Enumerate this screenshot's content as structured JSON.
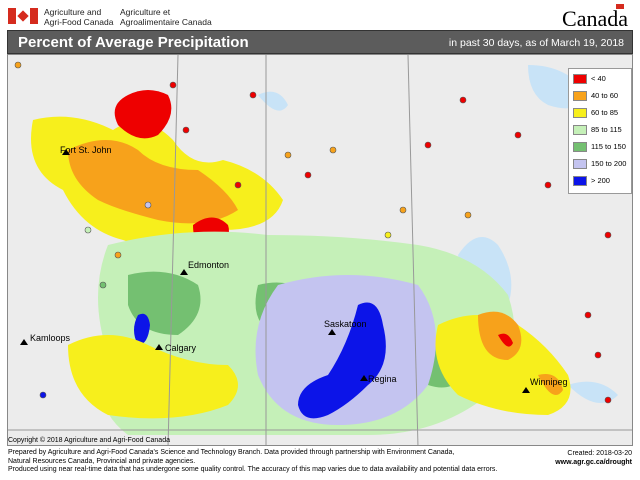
{
  "header": {
    "dept_en": "Agriculture and\nAgri-Food Canada",
    "dept_fr": "Agriculture et\nAgroalimentaire Canada",
    "wordmark": "Canada",
    "flag_color": "#d52b1e"
  },
  "title": {
    "main": "Percent of Average Precipitation",
    "sub": "in past 30 days, as of March 19, 2018"
  },
  "legend": [
    {
      "label": "< 40",
      "color": "#ee0000"
    },
    {
      "label": "40 to 60",
      "color": "#f7a21b"
    },
    {
      "label": "60 to 85",
      "color": "#f7ef1c"
    },
    {
      "label": "85 to 115",
      "color": "#c5f0b8"
    },
    {
      "label": "115 to 150",
      "color": "#74c071"
    },
    {
      "label": "150 to 200",
      "color": "#c4c4f0"
    },
    {
      "label": "> 200",
      "color": "#0c14e8"
    }
  ],
  "cities": [
    {
      "name": "Fort St. John"
    },
    {
      "name": "Edmonton"
    },
    {
      "name": "Kamloops"
    },
    {
      "name": "Calgary"
    },
    {
      "name": "Saskatoon"
    },
    {
      "name": "Regina"
    },
    {
      "name": "Winnipeg"
    }
  ],
  "copyright": "Copyright © 2018 Agriculture and Agri-Food Canada",
  "footer": [
    "Prepared by Agriculture and Agri-Food Canada's Science and Technology Branch. Data provided through partnership with Environment Canada,",
    "Natural Resources Canada, Provincial and private agencies.",
    "Produced using near real-time data that has undergone some quality control. The accuracy of this map varies due to data availability and potential data errors."
  ],
  "created": {
    "date": "Created: 2018-03-20",
    "url": "www.agr.gc.ca/drought"
  }
}
